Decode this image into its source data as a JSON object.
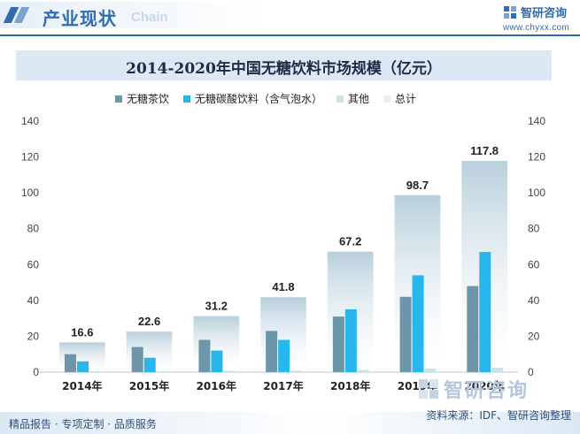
{
  "header": {
    "section_title": "产业现状",
    "section_subtitle": "Chain",
    "logo_name": "智研咨询",
    "logo_url": "www.chyxx.com"
  },
  "footer": {
    "tagline": "精品报告 · 专项定制 · 品质服务",
    "source": "资料来源：IDF、智研咨询整理",
    "watermark_name": "智研咨询"
  },
  "colors": {
    "accent": "#2f6db0",
    "series_tea": "#6e96ab",
    "series_soda": "#28b7ec",
    "series_other": "#c7e3ec"
  },
  "chart_data": {
    "type": "bar",
    "title": "2014-2020年中国无糖饮料市场规模（亿元）",
    "categories": [
      "2014年",
      "2015年",
      "2016年",
      "2017年",
      "2018年",
      "2019年",
      "2020年"
    ],
    "series": [
      {
        "name": "无糖茶饮",
        "values": [
          10,
          14,
          18,
          23,
          31,
          42,
          48
        ]
      },
      {
        "name": "无糖碳酸饮料（含气泡水）",
        "values": [
          6,
          8,
          12,
          18,
          35,
          54,
          67
        ]
      },
      {
        "name": "其他",
        "values": [
          0.5,
          0.5,
          0.7,
          0.8,
          1.2,
          2.0,
          2.5
        ]
      },
      {
        "name": "总计",
        "values": [
          16.6,
          22.6,
          31.2,
          41.8,
          67.2,
          98.7,
          117.8
        ]
      }
    ],
    "data_labels": [
      "16.6",
      "22.6",
      "31.2",
      "41.8",
      "67.2",
      "98.7",
      "117.8"
    ],
    "ylim": [
      0,
      140
    ],
    "yticks": [
      "0",
      "20",
      "40",
      "60",
      "80",
      "100",
      "120",
      "140"
    ],
    "y2ticks": [
      "0",
      "20",
      "40",
      "60",
      "80",
      "100",
      "120",
      "140"
    ],
    "grid": false,
    "legend_position": "top"
  }
}
